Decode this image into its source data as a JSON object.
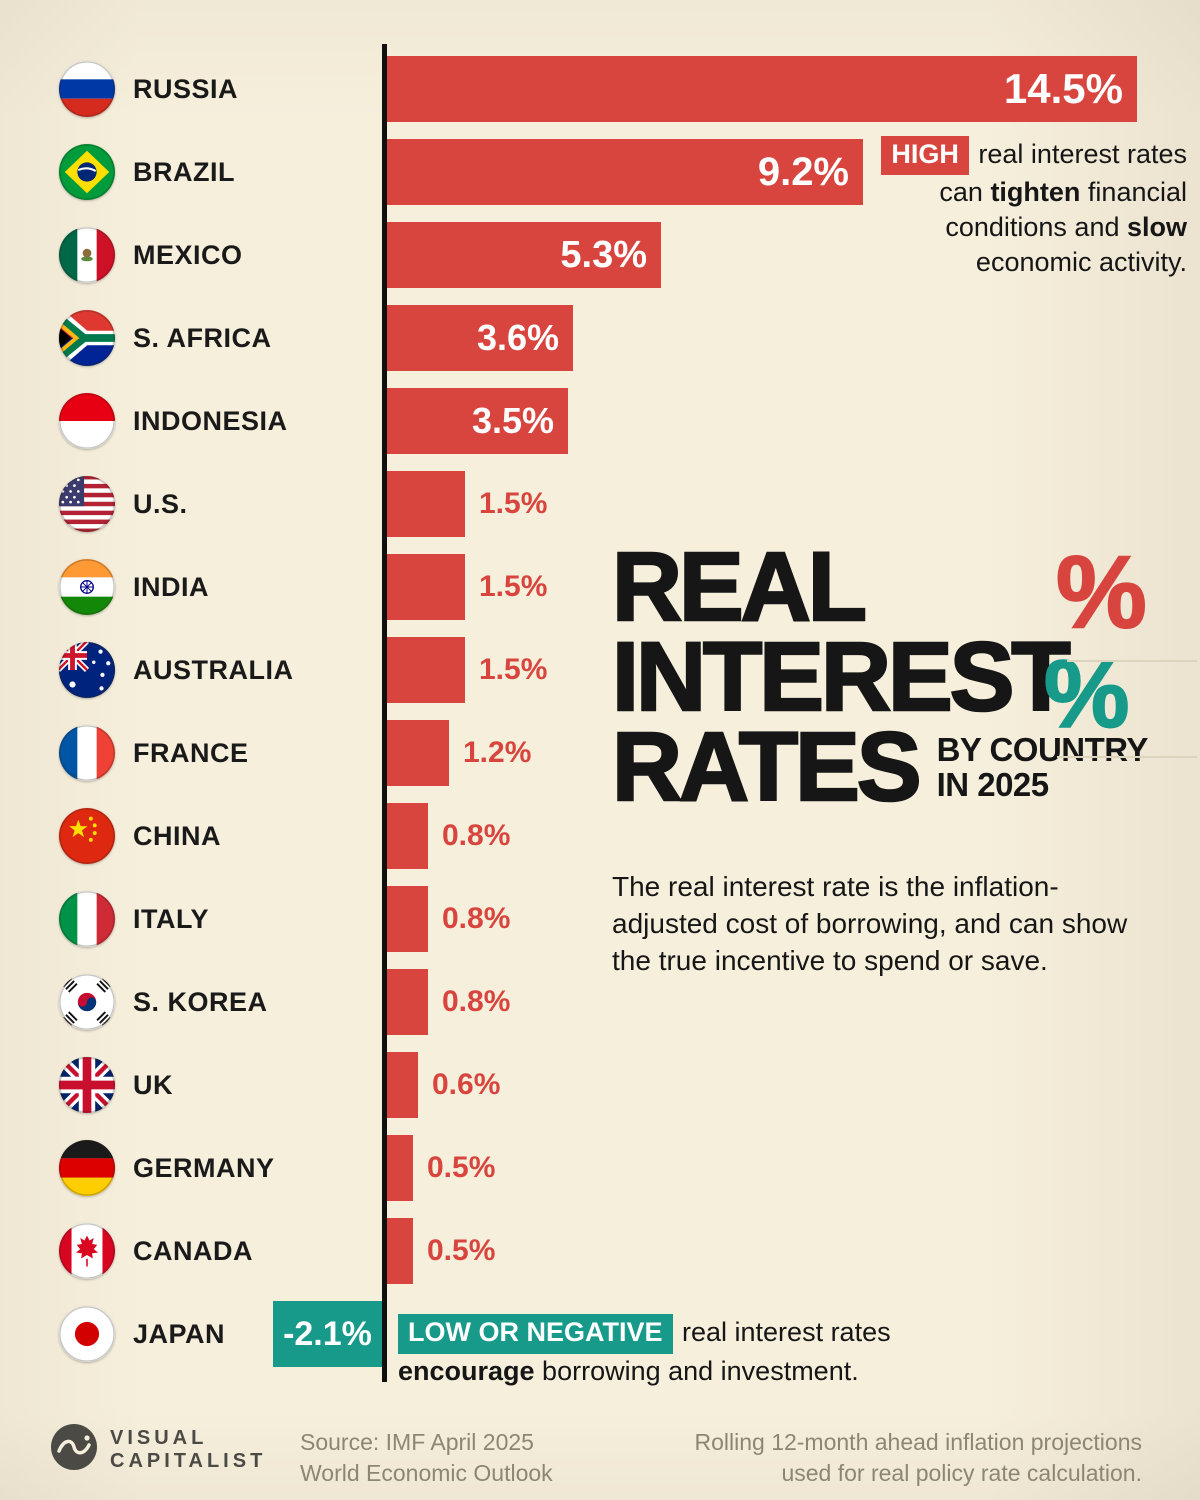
{
  "colors": {
    "background": "#f6efdc",
    "bar_red": "#d8453e",
    "bar_teal": "#179a89",
    "text_black": "#161616",
    "muted_gray": "#8d8674"
  },
  "chart_data": {
    "type": "bar",
    "orientation": "horizontal",
    "title": "REAL INTEREST RATES BY COUNTRY IN 2025",
    "title_lines": [
      "REAL",
      "INTEREST",
      "RATES"
    ],
    "subtitle_lines": [
      "BY COUNTRY",
      "IN 2025"
    ],
    "description": "The real interest rate is the inflation-adjusted cost of borrowing, and can show the true incentive to spend or save.",
    "unit": "%",
    "xlim": [
      -2.5,
      15
    ],
    "grid": false,
    "legend": false,
    "decorations": {
      "percent_red": "%",
      "percent_teal": "%"
    },
    "rows": [
      {
        "country": "RUSSIA",
        "flag": "russia",
        "value": 14.5,
        "label": "14.5%"
      },
      {
        "country": "BRAZIL",
        "flag": "brazil",
        "value": 9.2,
        "label": "9.2%"
      },
      {
        "country": "MEXICO",
        "flag": "mexico",
        "value": 5.3,
        "label": "5.3%"
      },
      {
        "country": "S. AFRICA",
        "flag": "south-africa",
        "value": 3.6,
        "label": "3.6%"
      },
      {
        "country": "INDONESIA",
        "flag": "indonesia",
        "value": 3.5,
        "label": "3.5%"
      },
      {
        "country": "U.S.",
        "flag": "us",
        "value": 1.5,
        "label": "1.5%"
      },
      {
        "country": "INDIA",
        "flag": "india",
        "value": 1.5,
        "label": "1.5%"
      },
      {
        "country": "AUSTRALIA",
        "flag": "australia",
        "value": 1.5,
        "label": "1.5%"
      },
      {
        "country": "FRANCE",
        "flag": "france",
        "value": 1.2,
        "label": "1.2%"
      },
      {
        "country": "CHINA",
        "flag": "china",
        "value": 0.8,
        "label": "0.8%"
      },
      {
        "country": "ITALY",
        "flag": "italy",
        "value": 0.8,
        "label": "0.8%"
      },
      {
        "country": "S. KOREA",
        "flag": "south-korea",
        "value": 0.8,
        "label": "0.8%"
      },
      {
        "country": "UK",
        "flag": "uk",
        "value": 0.6,
        "label": "0.6%"
      },
      {
        "country": "GERMANY",
        "flag": "germany",
        "value": 0.5,
        "label": "0.5%"
      },
      {
        "country": "CANADA",
        "flag": "canada",
        "value": 0.5,
        "label": "0.5%"
      },
      {
        "country": "JAPAN",
        "flag": "japan",
        "value": -2.1,
        "label": "-2.1%"
      }
    ]
  },
  "annotations": {
    "high": {
      "badge": "HIGH",
      "segments": [
        {
          "t": " real interest rates can "
        },
        {
          "t": "tighten",
          "b": true
        },
        {
          "t": " financial conditions and "
        },
        {
          "t": "slow",
          "b": true
        },
        {
          "t": " economic activity."
        }
      ]
    },
    "low": {
      "badge": "LOW OR NEGATIVE",
      "segments": [
        {
          "t": " real interest rates "
        },
        {
          "t": "encourage",
          "b": true
        },
        {
          "t": " borrowing and investment."
        }
      ]
    }
  },
  "footer": {
    "logo_lines": [
      "VISUAL",
      "CAPITALIST"
    ],
    "source_lines": [
      "Source: IMF April 2025",
      "World Economic Outlook"
    ],
    "note_lines": [
      "Rolling 12-month ahead inflation projections",
      "used for real policy rate calculation."
    ]
  }
}
